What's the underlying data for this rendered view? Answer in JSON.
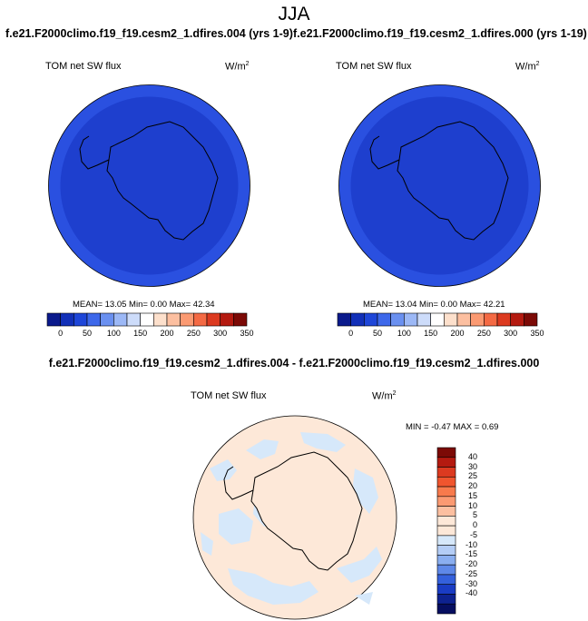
{
  "season": "JJA",
  "panels": [
    {
      "title": "f.e21.F2000climo.f19_f19.cesm2_1.dfires.004 (yrs 1-9)",
      "variable": "TOM net SW flux",
      "unit_base": "W/m",
      "unit_exp": "2",
      "stats": "MEAN= 13.05  Min=  0.00  Max=  42.34",
      "outer_ring_color": "#2a50e0",
      "inner_color": "#1e3fce"
    },
    {
      "title": "f.e21.F2000climo.f19_f19.cesm2_1.dfires.000 (yrs 1-19)",
      "variable": "TOM net SW flux",
      "unit_base": "W/m",
      "unit_exp": "2",
      "stats": "MEAN=  13.04  Min=  0.00  Max=  42.21",
      "outer_ring_color": "#2a50e0",
      "inner_color": "#1e3fce"
    }
  ],
  "colorbar_top": {
    "colors": [
      "#0a1a8c",
      "#1230b8",
      "#1e46d8",
      "#3d68ea",
      "#6a90f0",
      "#9cb8f6",
      "#cddcfa",
      "#ffffff",
      "#fde0cc",
      "#fcbfa0",
      "#fb9a72",
      "#f46a44",
      "#dc3a20",
      "#b41a10",
      "#7c0a06"
    ],
    "labels": [
      "0",
      "50",
      "100",
      "150",
      "200",
      "250",
      "300",
      "350"
    ]
  },
  "diff": {
    "title": "f.e21.F2000climo.f19_f19.cesm2_1.dfires.004 - f.e21.F2000climo.f19_f19.cesm2_1.dfires.000",
    "variable": "TOM net SW flux",
    "unit_base": "W/m",
    "unit_exp": "2",
    "stats": "MIN =  -0.47 MAX =  0.69",
    "bg_color": "#fde8d8",
    "patch_color": "#d6e8fa"
  },
  "colorbar_diff": {
    "colors": [
      "#7c0a06",
      "#b41a10",
      "#dc3a20",
      "#f0552e",
      "#f87a4c",
      "#fb9a72",
      "#fcbfa0",
      "#fde8d8",
      "#fde8d8",
      "#d6e8fa",
      "#b4cdf6",
      "#8aaef0",
      "#5e88e8",
      "#3460dc",
      "#1a3cc4",
      "#0e2290",
      "#060e60"
    ],
    "labels": [
      "40",
      "30",
      "25",
      "20",
      "15",
      "10",
      "5",
      "0",
      "-5",
      "-10",
      "-15",
      "-20",
      "-25",
      "-30",
      "-40"
    ]
  }
}
